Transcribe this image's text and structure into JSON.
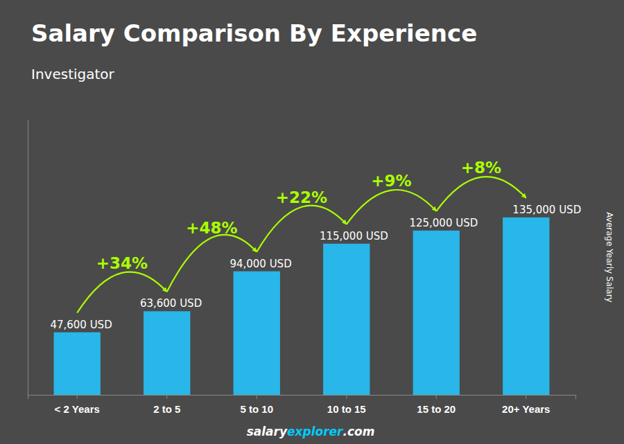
{
  "chart_data": {
    "type": "bar",
    "title": "Salary Comparison By Experience",
    "subtitle": "Investigator",
    "y_label": "Average Yearly Salary",
    "categories": [
      "< 2 Years",
      "2 to 5",
      "5 to 10",
      "10 to 15",
      "15 to 20",
      "20+ Years"
    ],
    "values": [
      47600,
      63600,
      94000,
      115000,
      125000,
      135000
    ],
    "value_labels": [
      "47,600 USD",
      "63,600 USD",
      "94,000 USD",
      "115,000 USD",
      "125,000 USD",
      "135,000 USD"
    ],
    "data_labels": true,
    "annotations": [
      "+34%",
      "+48%",
      "+22%",
      "+9%",
      "+8%"
    ],
    "footer": [
      "salary",
      "explorer",
      ".com"
    ],
    "color": "#29b6e8",
    "ylim": [
      0,
      209250
    ],
    "grid": false,
    "tick_labels": "x"
  }
}
